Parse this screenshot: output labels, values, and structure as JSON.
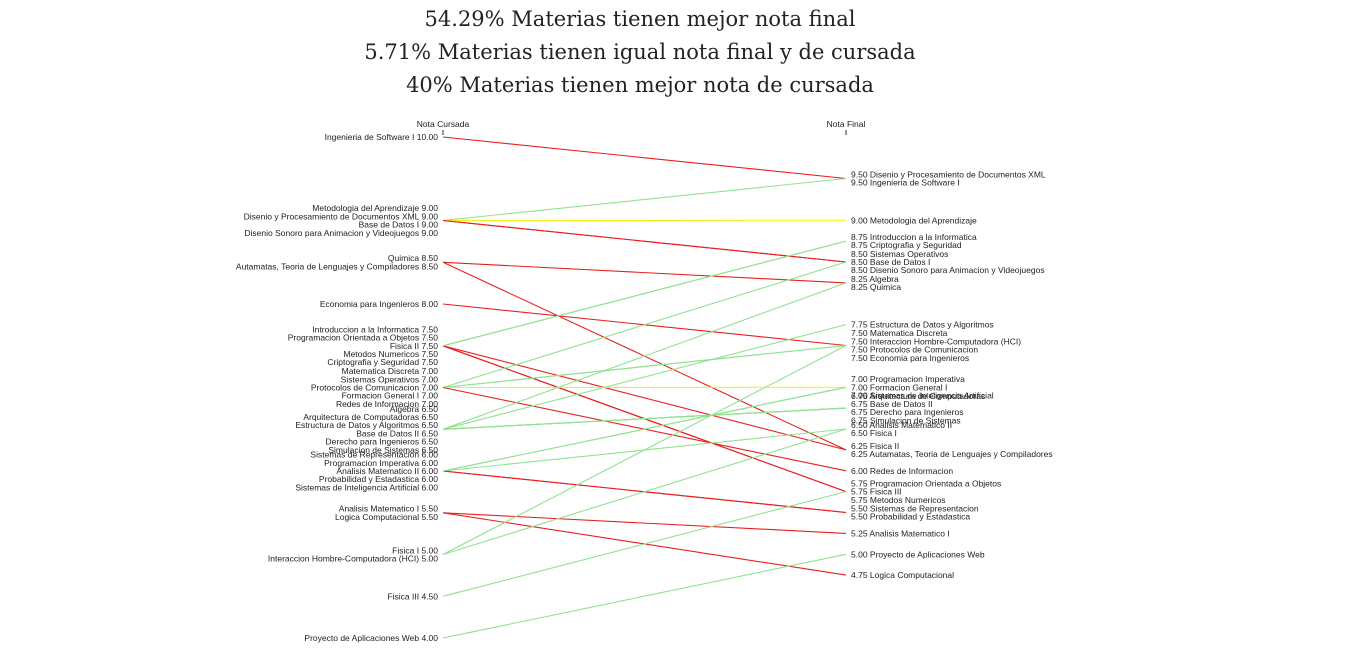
{
  "summary": {
    "line1": "54.29% Materias tienen mejor nota final",
    "line2": "5.71% Materias tienen igual nota final y de cursada",
    "line3": "40% Materias tienen mejor nota de cursada"
  },
  "colors": {
    "better_final": "#90e290",
    "equal": "#f2f21a",
    "better_cursada": "#e82020",
    "axis": "#333333"
  },
  "chart_data": {
    "type": "slope",
    "title": "",
    "left_axis": {
      "label": "Nota Cursada",
      "range": [
        4.0,
        10.0
      ]
    },
    "right_axis": {
      "label": "Nota Final",
      "range": [
        4.75,
        9.5
      ]
    },
    "left_labels": [
      {
        "text": "Ingenieria de Software I 10.00",
        "value": 10.0
      },
      {
        "text": "Metodologia del Aprendizaje 9.00",
        "value": 9.0
      },
      {
        "text": "Disenio y Procesamiento de Documentos XML 9.00",
        "value": 9.0
      },
      {
        "text": "Base de Datos I 9.00",
        "value": 9.0
      },
      {
        "text": "Disenio Sonoro para Animacion y Videojuegos 9.00",
        "value": 9.0
      },
      {
        "text": "Quimica 8.50",
        "value": 8.5
      },
      {
        "text": "Autamatas, Teoria de Lenguajes y Compiladores 8.50",
        "value": 8.5
      },
      {
        "text": "Economia para Ingenieros 8.00",
        "value": 8.0
      },
      {
        "text": "Introduccion a la Informatica 7.50",
        "value": 7.5
      },
      {
        "text": "Programacion Orientada a Objetos 7.50",
        "value": 7.5
      },
      {
        "text": "Fisica II 7.50",
        "value": 7.5
      },
      {
        "text": "Metodos Numericos 7.50",
        "value": 7.5
      },
      {
        "text": "Criptografia y Seguridad 7.50",
        "value": 7.5
      },
      {
        "text": "Matematica Discreta 7.00",
        "value": 7.0
      },
      {
        "text": "Sistemas Operativos 7.00",
        "value": 7.0
      },
      {
        "text": "Protocolos de Comunicacion 7.00",
        "value": 7.0
      },
      {
        "text": "Formacion General I 7.00",
        "value": 7.0
      },
      {
        "text": "Redes de Informacion 7.00",
        "value": 7.0
      },
      {
        "text": "Algebra 6.50",
        "value": 6.5
      },
      {
        "text": "Arquitectura de Computadoras 6.50",
        "value": 6.5
      },
      {
        "text": "Estructura de Datos y Algoritmos 6.50",
        "value": 6.5
      },
      {
        "text": "Base de Datos II 6.50",
        "value": 6.5
      },
      {
        "text": "Derecho para Ingenieros 6.50",
        "value": 6.5
      },
      {
        "text": "Simulacion de Sistemas 6.50",
        "value": 6.5
      },
      {
        "text": "Sistemas de Representacion 6.00",
        "value": 6.0
      },
      {
        "text": "Programacion Imperativa 6.00",
        "value": 6.0
      },
      {
        "text": "Analisis Matematico II 6.00",
        "value": 6.0
      },
      {
        "text": "Probabilidad y Estadastica 6.00",
        "value": 6.0
      },
      {
        "text": "Sistemas de Inteligencia Artificial 6.00",
        "value": 6.0
      },
      {
        "text": "Analisis Matematico I 5.50",
        "value": 5.5
      },
      {
        "text": "Logica Computacional 5.50",
        "value": 5.5
      },
      {
        "text": "Fisica I 5.00",
        "value": 5.0
      },
      {
        "text": "Interaccion Hombre-Computadora (HCI) 5.00",
        "value": 5.0
      },
      {
        "text": "Fisica III 4.50",
        "value": 4.5
      },
      {
        "text": "Proyecto de Aplicaciones Web 4.00",
        "value": 4.0
      }
    ],
    "right_labels": [
      {
        "text": "9.50 Disenio y Procesamiento de Documentos XML",
        "value": 9.5
      },
      {
        "text": "9.50 Ingenieria de Software I",
        "value": 9.5
      },
      {
        "text": "9.00 Metodologia del Aprendizaje",
        "value": 9.0
      },
      {
        "text": "8.75 Introduccion a la Informatica",
        "value": 8.75
      },
      {
        "text": "8.75 Criptografia y Seguridad",
        "value": 8.75
      },
      {
        "text": "8.50 Sistemas Operativos",
        "value": 8.5
      },
      {
        "text": "8.50 Base de Datos I",
        "value": 8.5
      },
      {
        "text": "8.50 Disenio Sonoro para Animacion y Videojuegos",
        "value": 8.5
      },
      {
        "text": "8.25 Algebra",
        "value": 8.25
      },
      {
        "text": "8.25 Quimica",
        "value": 8.25
      },
      {
        "text": "7.75 Estructura de Datos y Algoritmos",
        "value": 7.75
      },
      {
        "text": "7.50 Matematica Discreta",
        "value": 7.5
      },
      {
        "text": "7.50 Interaccion Hombre-Computadora (HCI)",
        "value": 7.5
      },
      {
        "text": "7.50 Protocolos de Comunicacion",
        "value": 7.5
      },
      {
        "text": "7.50 Economia para Ingenieros",
        "value": 7.5
      },
      {
        "text": "7.00 Programacion Imperativa",
        "value": 7.0
      },
      {
        "text": "7.00 Formacion General I",
        "value": 7.0
      },
      {
        "text": "7.00 Sistemas de Inteligencia Artificial",
        "value": 7.0
      },
      {
        "text": "6.75 Arquitectura de Computadoras",
        "value": 6.75
      },
      {
        "text": "6.75 Base de Datos II",
        "value": 6.75
      },
      {
        "text": "6.75 Derecho para Ingenieros",
        "value": 6.75
      },
      {
        "text": "6.75 Simulacion de Sistemas",
        "value": 6.75
      },
      {
        "text": "6.50 Analisis Matematico II",
        "value": 6.5
      },
      {
        "text": "6.50 Fisica I",
        "value": 6.5
      },
      {
        "text": "6.25 Fisica II",
        "value": 6.25
      },
      {
        "text": "6.25 Autamatas, Teoria de Lenguajes y Compiladores",
        "value": 6.25
      },
      {
        "text": "6.00 Redes de Informacion",
        "value": 6.0
      },
      {
        "text": "5.75 Programacion Orientada a Objetos",
        "value": 5.75
      },
      {
        "text": "5.75 Fisica III",
        "value": 5.75
      },
      {
        "text": "5.75 Metodos Numericos",
        "value": 5.75
      },
      {
        "text": "5.50 Sistemas de Representacion",
        "value": 5.5
      },
      {
        "text": "5.50 Probabilidad y Estadastica",
        "value": 5.5
      },
      {
        "text": "5.25 Analisis Matematico I",
        "value": 5.25
      },
      {
        "text": "5.00 Proyecto de Aplicaciones Web",
        "value": 5.0
      },
      {
        "text": "4.75 Logica Computacional",
        "value": 4.75
      }
    ],
    "lines": [
      {
        "from": 10.0,
        "to": 9.5
      },
      {
        "from": 9.0,
        "to": 9.5
      },
      {
        "from": 9.0,
        "to": 9.0
      },
      {
        "from": 9.0,
        "to": 8.5
      },
      {
        "from": 9.0,
        "to": 8.5
      },
      {
        "from": 8.5,
        "to": 8.25
      },
      {
        "from": 8.5,
        "to": 6.25
      },
      {
        "from": 8.0,
        "to": 7.5
      },
      {
        "from": 7.5,
        "to": 8.75
      },
      {
        "from": 7.5,
        "to": 5.75
      },
      {
        "from": 7.5,
        "to": 6.25
      },
      {
        "from": 7.5,
        "to": 5.75
      },
      {
        "from": 7.5,
        "to": 8.75
      },
      {
        "from": 7.0,
        "to": 7.5
      },
      {
        "from": 7.0,
        "to": 8.5
      },
      {
        "from": 7.0,
        "to": 7.5
      },
      {
        "from": 7.0,
        "to": 7.0
      },
      {
        "from": 7.0,
        "to": 6.0
      },
      {
        "from": 6.5,
        "to": 8.25
      },
      {
        "from": 6.5,
        "to": 6.75
      },
      {
        "from": 6.5,
        "to": 7.75
      },
      {
        "from": 6.5,
        "to": 6.75
      },
      {
        "from": 6.5,
        "to": 6.75
      },
      {
        "from": 6.5,
        "to": 6.75
      },
      {
        "from": 6.0,
        "to": 5.5
      },
      {
        "from": 6.0,
        "to": 7.0
      },
      {
        "from": 6.0,
        "to": 6.5
      },
      {
        "from": 6.0,
        "to": 5.5
      },
      {
        "from": 6.0,
        "to": 7.0
      },
      {
        "from": 5.5,
        "to": 5.25
      },
      {
        "from": 5.5,
        "to": 4.75
      },
      {
        "from": 5.0,
        "to": 6.5
      },
      {
        "from": 5.0,
        "to": 7.5
      },
      {
        "from": 4.5,
        "to": 5.75
      },
      {
        "from": 4.0,
        "to": 5.0
      }
    ]
  }
}
